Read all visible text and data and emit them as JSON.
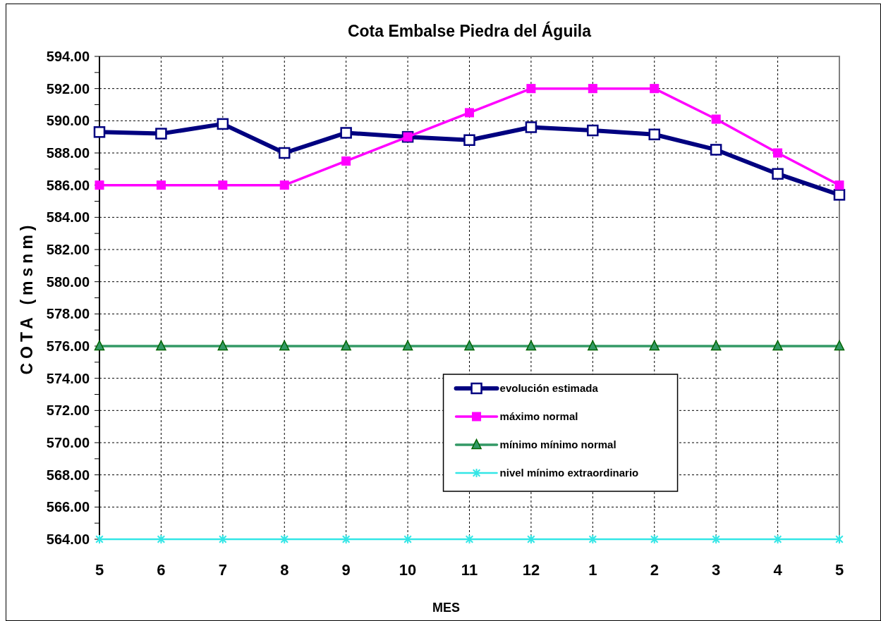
{
  "chart_data": {
    "type": "line",
    "title": "Cota Embalse Piedra del Águila",
    "xlabel": "MES",
    "ylabel": "COTA (msnm)",
    "categories": [
      "5",
      "6",
      "7",
      "8",
      "9",
      "10",
      "11",
      "12",
      "1",
      "2",
      "3",
      "4",
      "5"
    ],
    "series": [
      {
        "name": "evolución estimada",
        "color": "#000080",
        "marker": "square",
        "values": [
          589.3,
          589.2,
          589.8,
          588.0,
          589.25,
          589.0,
          588.8,
          589.6,
          589.4,
          589.15,
          588.2,
          586.7,
          585.4
        ]
      },
      {
        "name": "máximo normal",
        "color": "#ff00ff",
        "marker": "square",
        "values": [
          586,
          586,
          586,
          586,
          587.5,
          589.0,
          590.5,
          592,
          592,
          592,
          590.1,
          588.0,
          586
        ]
      },
      {
        "name": "mínimo mínimo normal",
        "color": "#339966",
        "marker": "triangle",
        "values": [
          576,
          576,
          576,
          576,
          576,
          576,
          576,
          576,
          576,
          576,
          576,
          576,
          576
        ]
      },
      {
        "name": "nivel mínimo extraordinario",
        "color": "#33e6e6",
        "marker": "cross",
        "values": [
          564,
          564,
          564,
          564,
          564,
          564,
          564,
          564,
          564,
          564,
          564,
          564,
          564
        ]
      }
    ],
    "ylim": [
      564,
      594
    ],
    "yticks": [
      {
        "value": 564,
        "label": "564.00"
      },
      {
        "value": 565,
        "label": null
      },
      {
        "value": 566,
        "label": "566.00"
      },
      {
        "value": 567,
        "label": null
      },
      {
        "value": 568,
        "label": "568.00"
      },
      {
        "value": 569,
        "label": null
      },
      {
        "value": 570,
        "label": "570.00"
      },
      {
        "value": 571,
        "label": null
      },
      {
        "value": 572,
        "label": "572.00"
      },
      {
        "value": 573,
        "label": null
      },
      {
        "value": 574,
        "label": "574.00"
      },
      {
        "value": 575,
        "label": null
      },
      {
        "value": 576,
        "label": "576.00"
      },
      {
        "value": 577,
        "label": null
      },
      {
        "value": 578,
        "label": "578.00"
      },
      {
        "value": 579,
        "label": null
      },
      {
        "value": 580,
        "label": "580.00"
      },
      {
        "value": 581,
        "label": null
      },
      {
        "value": 582,
        "label": "582.00"
      },
      {
        "value": 583,
        "label": null
      },
      {
        "value": 584,
        "label": "584.00"
      },
      {
        "value": 585,
        "label": null
      },
      {
        "value": 586,
        "label": "586.00"
      },
      {
        "value": 587,
        "label": null
      },
      {
        "value": 588,
        "label": "588.00"
      },
      {
        "value": 589,
        "label": null
      },
      {
        "value": 590,
        "label": "590.00"
      },
      {
        "value": 591,
        "label": null
      },
      {
        "value": 592,
        "label": "592.00"
      },
      {
        "value": 593,
        "label": null
      },
      {
        "value": 594,
        "label": "594.00"
      }
    ],
    "grid": true,
    "legend": "bottom",
    "line_style": "solid"
  }
}
